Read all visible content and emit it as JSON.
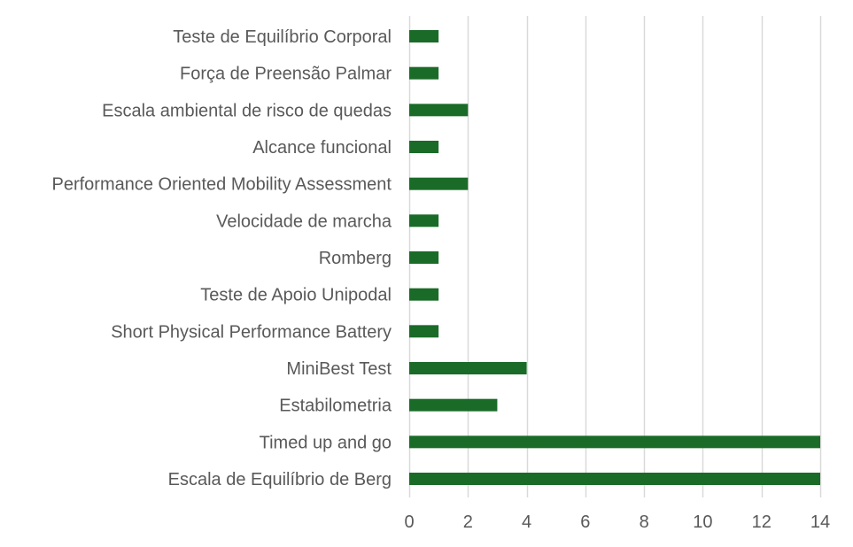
{
  "chart_data": {
    "type": "bar",
    "orientation": "horizontal",
    "categories": [
      "Teste de Equilíbrio Corporal",
      "Força de Preensão Palmar",
      "Escala ambiental de risco de quedas",
      "Alcance funcional",
      "Performance Oriented Mobility Assessment",
      "Velocidade de marcha",
      "Romberg",
      "Teste de Apoio Unipodal",
      "Short Physical Performance Battery",
      "MiniBest Test",
      "Estabilometria",
      "Timed up and go",
      "Escala de Equilíbrio de Berg"
    ],
    "values": [
      1,
      1,
      2,
      1,
      2,
      1,
      1,
      1,
      1,
      4,
      3,
      14,
      14
    ],
    "xlim": [
      0,
      14
    ],
    "xticks": [
      0,
      2,
      4,
      6,
      8,
      10,
      12,
      14
    ],
    "title": "",
    "xlabel": "",
    "ylabel": "",
    "grid": "vertical",
    "legend": "none",
    "colors": {
      "bar": "#1a6b28",
      "grid": "#d9d9d9",
      "text": "#595959"
    }
  }
}
